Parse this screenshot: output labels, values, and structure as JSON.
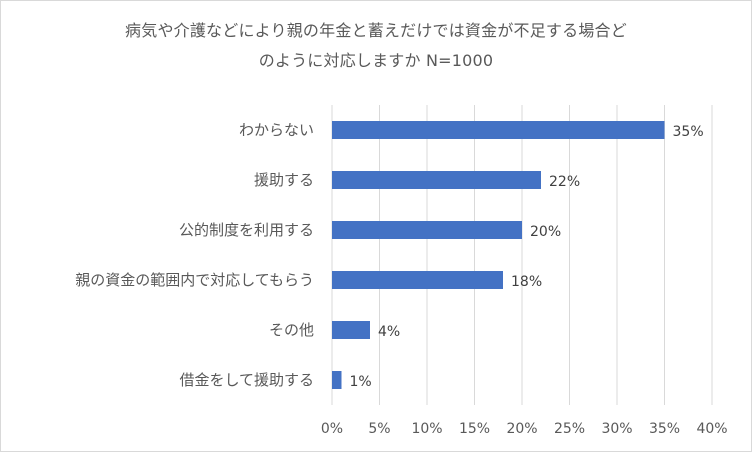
{
  "chart_data": {
    "type": "bar",
    "orientation": "horizontal",
    "title_lines": [
      "病気や介護などにより親の年金と蓄えだけでは資金が不足する場合ど",
      "のように対応しますか N=1000"
    ],
    "categories": [
      "わからない",
      "援助する",
      "公的制度を利用する",
      "親の資金の範囲内で対応してもらう",
      "その他",
      "借金をして援助する"
    ],
    "values": [
      35,
      22,
      20,
      18,
      4,
      1
    ],
    "value_suffix": "%",
    "xlim": [
      0,
      40
    ],
    "x_ticks": [
      0,
      5,
      10,
      15,
      20,
      25,
      30,
      35,
      40
    ],
    "x_tick_labels": [
      "0%",
      "5%",
      "10%",
      "15%",
      "20%",
      "25%",
      "30%",
      "35%",
      "40%"
    ],
    "grid": "vertical",
    "legend": "none",
    "bar_color": "#4472C4",
    "grid_color": "#d9d9d9"
  }
}
